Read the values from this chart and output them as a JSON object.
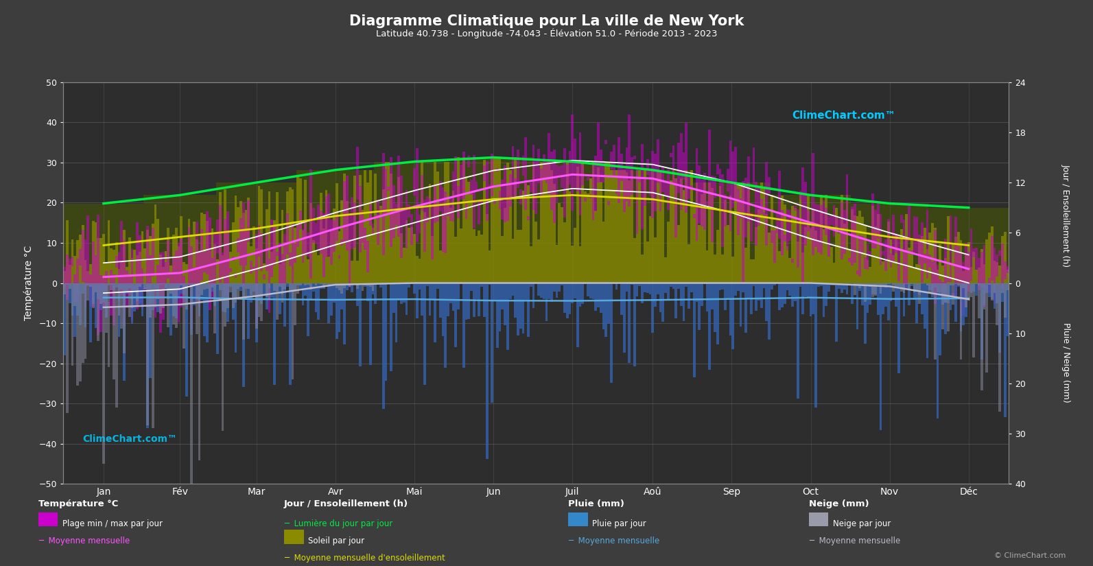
{
  "title": "Diagramme Climatique pour La ville de New York",
  "subtitle": "Latitude 40.738 - Longitude -74.043 - Élévation 51.0 - Période 2013 - 2023",
  "months": [
    "Jan",
    "Fév",
    "Mar",
    "Avr",
    "Mai",
    "Jun",
    "Juil",
    "Aoû",
    "Sep",
    "Oct",
    "Nov",
    "Déc"
  ],
  "background_color": "#3d3d3d",
  "plot_bg_color": "#2d2d2d",
  "temp_min_monthly": [
    -2.5,
    -1.5,
    3.5,
    9.5,
    15.0,
    20.5,
    23.5,
    22.5,
    17.5,
    11.0,
    5.5,
    0.0
  ],
  "temp_max_monthly": [
    5.0,
    6.5,
    11.5,
    17.5,
    23.0,
    28.0,
    30.5,
    29.5,
    25.0,
    18.5,
    12.5,
    7.0
  ],
  "temp_mean_monthly": [
    1.5,
    2.5,
    7.5,
    13.5,
    19.0,
    24.0,
    27.0,
    26.0,
    21.0,
    15.0,
    9.0,
    3.5
  ],
  "sunshine_hours_monthly": [
    4.5,
    5.5,
    6.5,
    8.0,
    9.0,
    10.0,
    10.5,
    10.0,
    8.5,
    7.0,
    5.5,
    4.5
  ],
  "daylight_hours_monthly": [
    9.5,
    10.5,
    12.0,
    13.5,
    14.5,
    15.0,
    14.5,
    13.5,
    12.0,
    10.5,
    9.5,
    9.0
  ],
  "rain_monthly_mm": [
    90,
    80,
    100,
    100,
    100,
    105,
    110,
    105,
    95,
    90,
    95,
    95
  ],
  "snow_monthly_mm": [
    150,
    120,
    80,
    10,
    0,
    0,
    0,
    0,
    0,
    0,
    20,
    100
  ],
  "days_per_month": [
    31,
    28,
    31,
    30,
    31,
    30,
    31,
    31,
    30,
    31,
    30,
    31
  ],
  "temp_ylim": [
    -50,
    50
  ],
  "sun_ylim": [
    0,
    24
  ],
  "rain_ylim": [
    0,
    40
  ],
  "left_yticks": [
    -50,
    -40,
    -30,
    -20,
    -10,
    0,
    10,
    20,
    30,
    40,
    50
  ],
  "right_sun_ticks": [
    0,
    6,
    12,
    18,
    24
  ],
  "right_rain_ticks": [
    0,
    10,
    20,
    30,
    40
  ]
}
